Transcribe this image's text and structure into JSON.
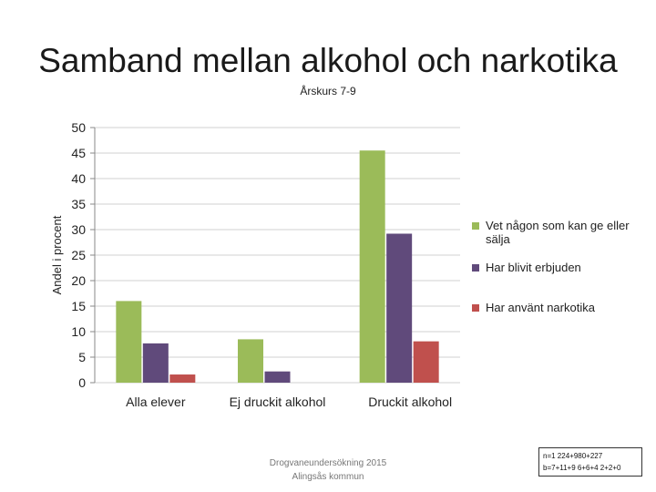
{
  "chart_data": {
    "type": "bar",
    "title": "Samband mellan alkohol och narkotika",
    "subtitle": "Årskurs 7-9",
    "ylabel": "Andel i procent",
    "xlabel": "",
    "ylim": [
      0,
      50
    ],
    "yticks": [
      0,
      5,
      10,
      15,
      20,
      25,
      30,
      35,
      40,
      45,
      50
    ],
    "grid": true,
    "legend_position": "right",
    "categories": [
      "Alla elever",
      "Ej druckit alkohol",
      "Druckit alkohol"
    ],
    "series": [
      {
        "name": "Vet någon som kan ge eller sälja",
        "color": "#9bbb59",
        "values": [
          16,
          8.5,
          45.5
        ]
      },
      {
        "name": "Har blivit erbjuden",
        "color": "#604a7b",
        "values": [
          7.7,
          2.2,
          29.2
        ]
      },
      {
        "name": "Har använt narkotika",
        "color": "#c0504d",
        "values": [
          1.6,
          0,
          8.1
        ]
      }
    ]
  },
  "footer": {
    "line1": "Drogvaneundersökning 2015",
    "line2": "Alingsås kommun"
  },
  "note_box": {
    "line1": "n=1 224+980+227",
    "line2": "b=7+11+9 6+6+4 2+2+0"
  }
}
